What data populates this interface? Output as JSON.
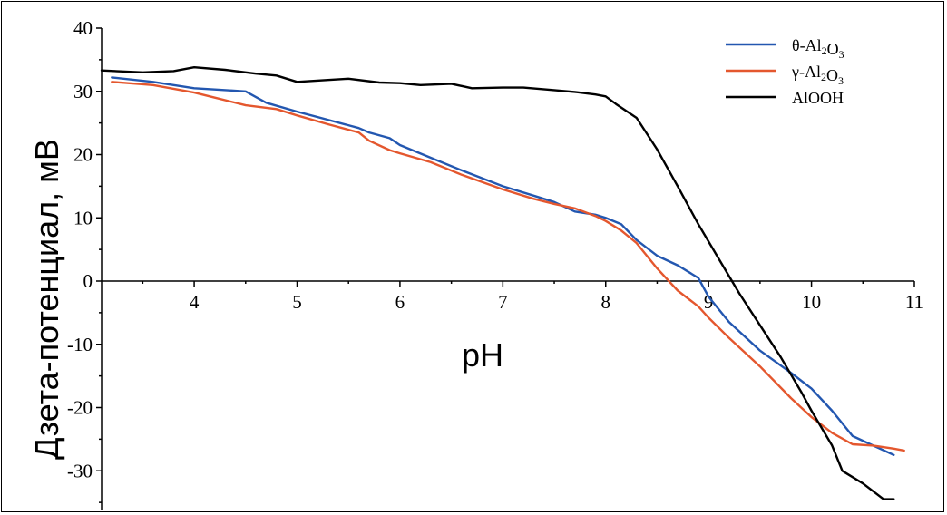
{
  "chart_data": {
    "type": "line",
    "title": "",
    "xlabel": "pH",
    "ylabel": "Дзета-потенциал, мВ",
    "xlim": [
      3.1,
      11
    ],
    "ylim": [
      -35,
      40
    ],
    "xticks": [
      4,
      5,
      6,
      7,
      8,
      9,
      10,
      11
    ],
    "yticks": [
      40,
      30,
      20,
      10,
      0,
      -10,
      -20,
      -30
    ],
    "xtick_labels": [
      "4",
      "5",
      "6",
      "7",
      "8",
      "9",
      "10",
      "11"
    ],
    "ytick_labels": [
      "40",
      "30",
      "20",
      "10",
      "0",
      "-10",
      "-20",
      "-30"
    ],
    "grid": false,
    "legend_position": "top-right",
    "series": [
      {
        "name": "θ-Al₂O₃",
        "legend": {
          "base": "θ-Al",
          "sub1": "2",
          "mid": "O",
          "sub2": "3"
        },
        "color": "#2357b0",
        "x": [
          3.2,
          3.6,
          4.0,
          4.2,
          4.5,
          4.7,
          5.0,
          5.3,
          5.6,
          5.7,
          5.9,
          6.0,
          6.3,
          6.6,
          7.0,
          7.3,
          7.5,
          7.7,
          7.9,
          8.0,
          8.15,
          8.3,
          8.5,
          8.7,
          8.9,
          9.0,
          9.2,
          9.5,
          9.8,
          10.0,
          10.2,
          10.4,
          10.6,
          10.8
        ],
        "y": [
          32.2,
          31.5,
          30.5,
          30.3,
          30.0,
          28.2,
          26.8,
          25.5,
          24.2,
          23.5,
          22.6,
          21.5,
          19.5,
          17.5,
          15.0,
          13.5,
          12.5,
          11.0,
          10.5,
          10.0,
          9.0,
          6.5,
          4.0,
          2.5,
          0.5,
          -2.5,
          -6.5,
          -11.0,
          -14.5,
          -17.0,
          -20.5,
          -24.5,
          -26.0,
          -27.5
        ]
      },
      {
        "name": "γ-Al₂O₃",
        "legend": {
          "base": "γ-Al",
          "sub1": "2",
          "mid": "O",
          "sub2": "3"
        },
        "color": "#e4572e",
        "x": [
          3.2,
          3.6,
          4.0,
          4.2,
          4.5,
          4.8,
          5.0,
          5.3,
          5.6,
          5.7,
          5.9,
          6.0,
          6.3,
          6.6,
          7.0,
          7.3,
          7.5,
          7.7,
          7.9,
          8.0,
          8.15,
          8.3,
          8.5,
          8.7,
          8.9,
          9.0,
          9.2,
          9.5,
          9.8,
          10.0,
          10.2,
          10.4,
          10.6,
          10.8,
          10.9
        ],
        "y": [
          31.5,
          31.0,
          29.8,
          29.0,
          27.8,
          27.2,
          26.2,
          24.8,
          23.5,
          22.2,
          20.7,
          20.2,
          18.8,
          16.8,
          14.5,
          13.0,
          12.2,
          11.5,
          10.3,
          9.5,
          8.0,
          6.0,
          2.0,
          -1.5,
          -4.0,
          -5.8,
          -9.0,
          -13.5,
          -18.5,
          -21.5,
          -24.0,
          -25.8,
          -26.0,
          -26.5,
          -26.8
        ]
      },
      {
        "name": "AlOOH",
        "legend": {
          "base": "AlOOH",
          "sub1": "",
          "mid": "",
          "sub2": ""
        },
        "color": "#000000",
        "x": [
          3.1,
          3.5,
          3.8,
          4.0,
          4.3,
          4.6,
          4.8,
          5.0,
          5.3,
          5.5,
          5.8,
          6.0,
          6.2,
          6.5,
          6.7,
          7.0,
          7.2,
          7.5,
          7.7,
          7.9,
          8.0,
          8.1,
          8.3,
          8.5,
          8.7,
          8.9,
          9.1,
          9.3,
          9.5,
          9.7,
          9.9,
          10.0,
          10.2,
          10.3,
          10.5,
          10.7,
          10.8
        ],
        "y": [
          33.3,
          33.0,
          33.2,
          33.8,
          33.4,
          32.8,
          32.5,
          31.5,
          31.8,
          32.0,
          31.4,
          31.3,
          31.0,
          31.2,
          30.5,
          30.6,
          30.6,
          30.2,
          29.9,
          29.5,
          29.2,
          28.0,
          25.8,
          20.8,
          15.0,
          9.0,
          3.5,
          -2.0,
          -7.0,
          -12.0,
          -17.5,
          -20.5,
          -26.0,
          -30.0,
          -32.0,
          -34.5,
          -36.0
        ]
      }
    ]
  }
}
